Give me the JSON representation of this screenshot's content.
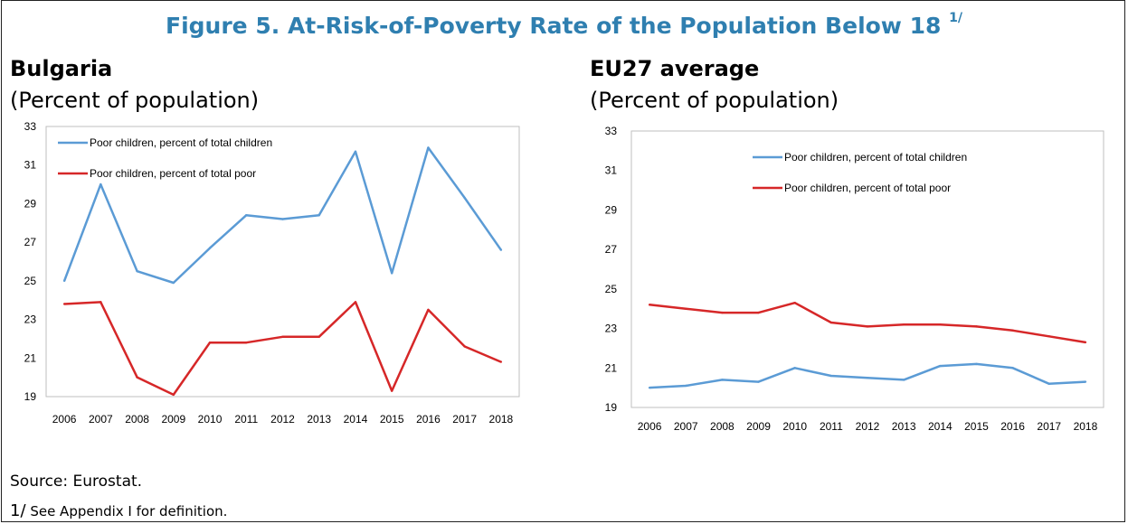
{
  "figure": {
    "title": "Figure 5. At-Risk-of-Poverty Rate of the Population Below 18",
    "title_note": "1/",
    "source": "Source: Eurostat.",
    "note_marker": "1/",
    "note_text": "See Appendix I for definition."
  },
  "colors": {
    "blue": "#5b9bd5",
    "red": "#d62728",
    "title": "#2f7fb0"
  },
  "chart_data": [
    {
      "type": "line",
      "title": "Bulgaria",
      "subtitle": "(Percent of population)",
      "categories": [
        "2006",
        "2007",
        "2008",
        "2009",
        "2010",
        "2011",
        "2012",
        "2013",
        "2014",
        "2015",
        "2016",
        "2017",
        "2018"
      ],
      "yticks": [
        "19",
        "21",
        "23",
        "25",
        "27",
        "29",
        "31",
        "33"
      ],
      "ylim": [
        19,
        33
      ],
      "legend_placement": "top-left",
      "grid": false,
      "series": [
        {
          "name": "Poor children, percent of total children",
          "color": "#5b9bd5",
          "values": [
            25.0,
            30.0,
            25.5,
            24.9,
            26.7,
            28.4,
            28.2,
            28.4,
            31.7,
            25.4,
            31.9,
            29.3,
            26.6
          ]
        },
        {
          "name": "Poor children, percent of total poor",
          "color": "#d62728",
          "values": [
            23.8,
            23.9,
            20.0,
            19.1,
            21.8,
            21.8,
            22.1,
            22.1,
            23.9,
            19.3,
            23.5,
            21.6,
            20.8
          ]
        }
      ]
    },
    {
      "type": "line",
      "title": "EU27 average",
      "subtitle": "(Percent of population)",
      "categories": [
        "2006",
        "2007",
        "2008",
        "2009",
        "2010",
        "2011",
        "2012",
        "2013",
        "2014",
        "2015",
        "2016",
        "2017",
        "2018"
      ],
      "yticks": [
        "19",
        "21",
        "23",
        "25",
        "27",
        "29",
        "31",
        "33"
      ],
      "ylim": [
        19,
        33
      ],
      "legend_placement": "top-center",
      "grid": false,
      "series": [
        {
          "name": "Poor children, percent of total children",
          "color": "#5b9bd5",
          "values": [
            20.0,
            20.1,
            20.4,
            20.3,
            21.0,
            20.6,
            20.5,
            20.4,
            21.1,
            21.2,
            21.0,
            20.2,
            20.3
          ]
        },
        {
          "name": "Poor children, percent of total poor",
          "color": "#d62728",
          "values": [
            24.2,
            24.0,
            23.8,
            23.8,
            24.3,
            23.3,
            23.1,
            23.2,
            23.2,
            23.1,
            22.9,
            22.6,
            22.3
          ]
        }
      ]
    }
  ]
}
